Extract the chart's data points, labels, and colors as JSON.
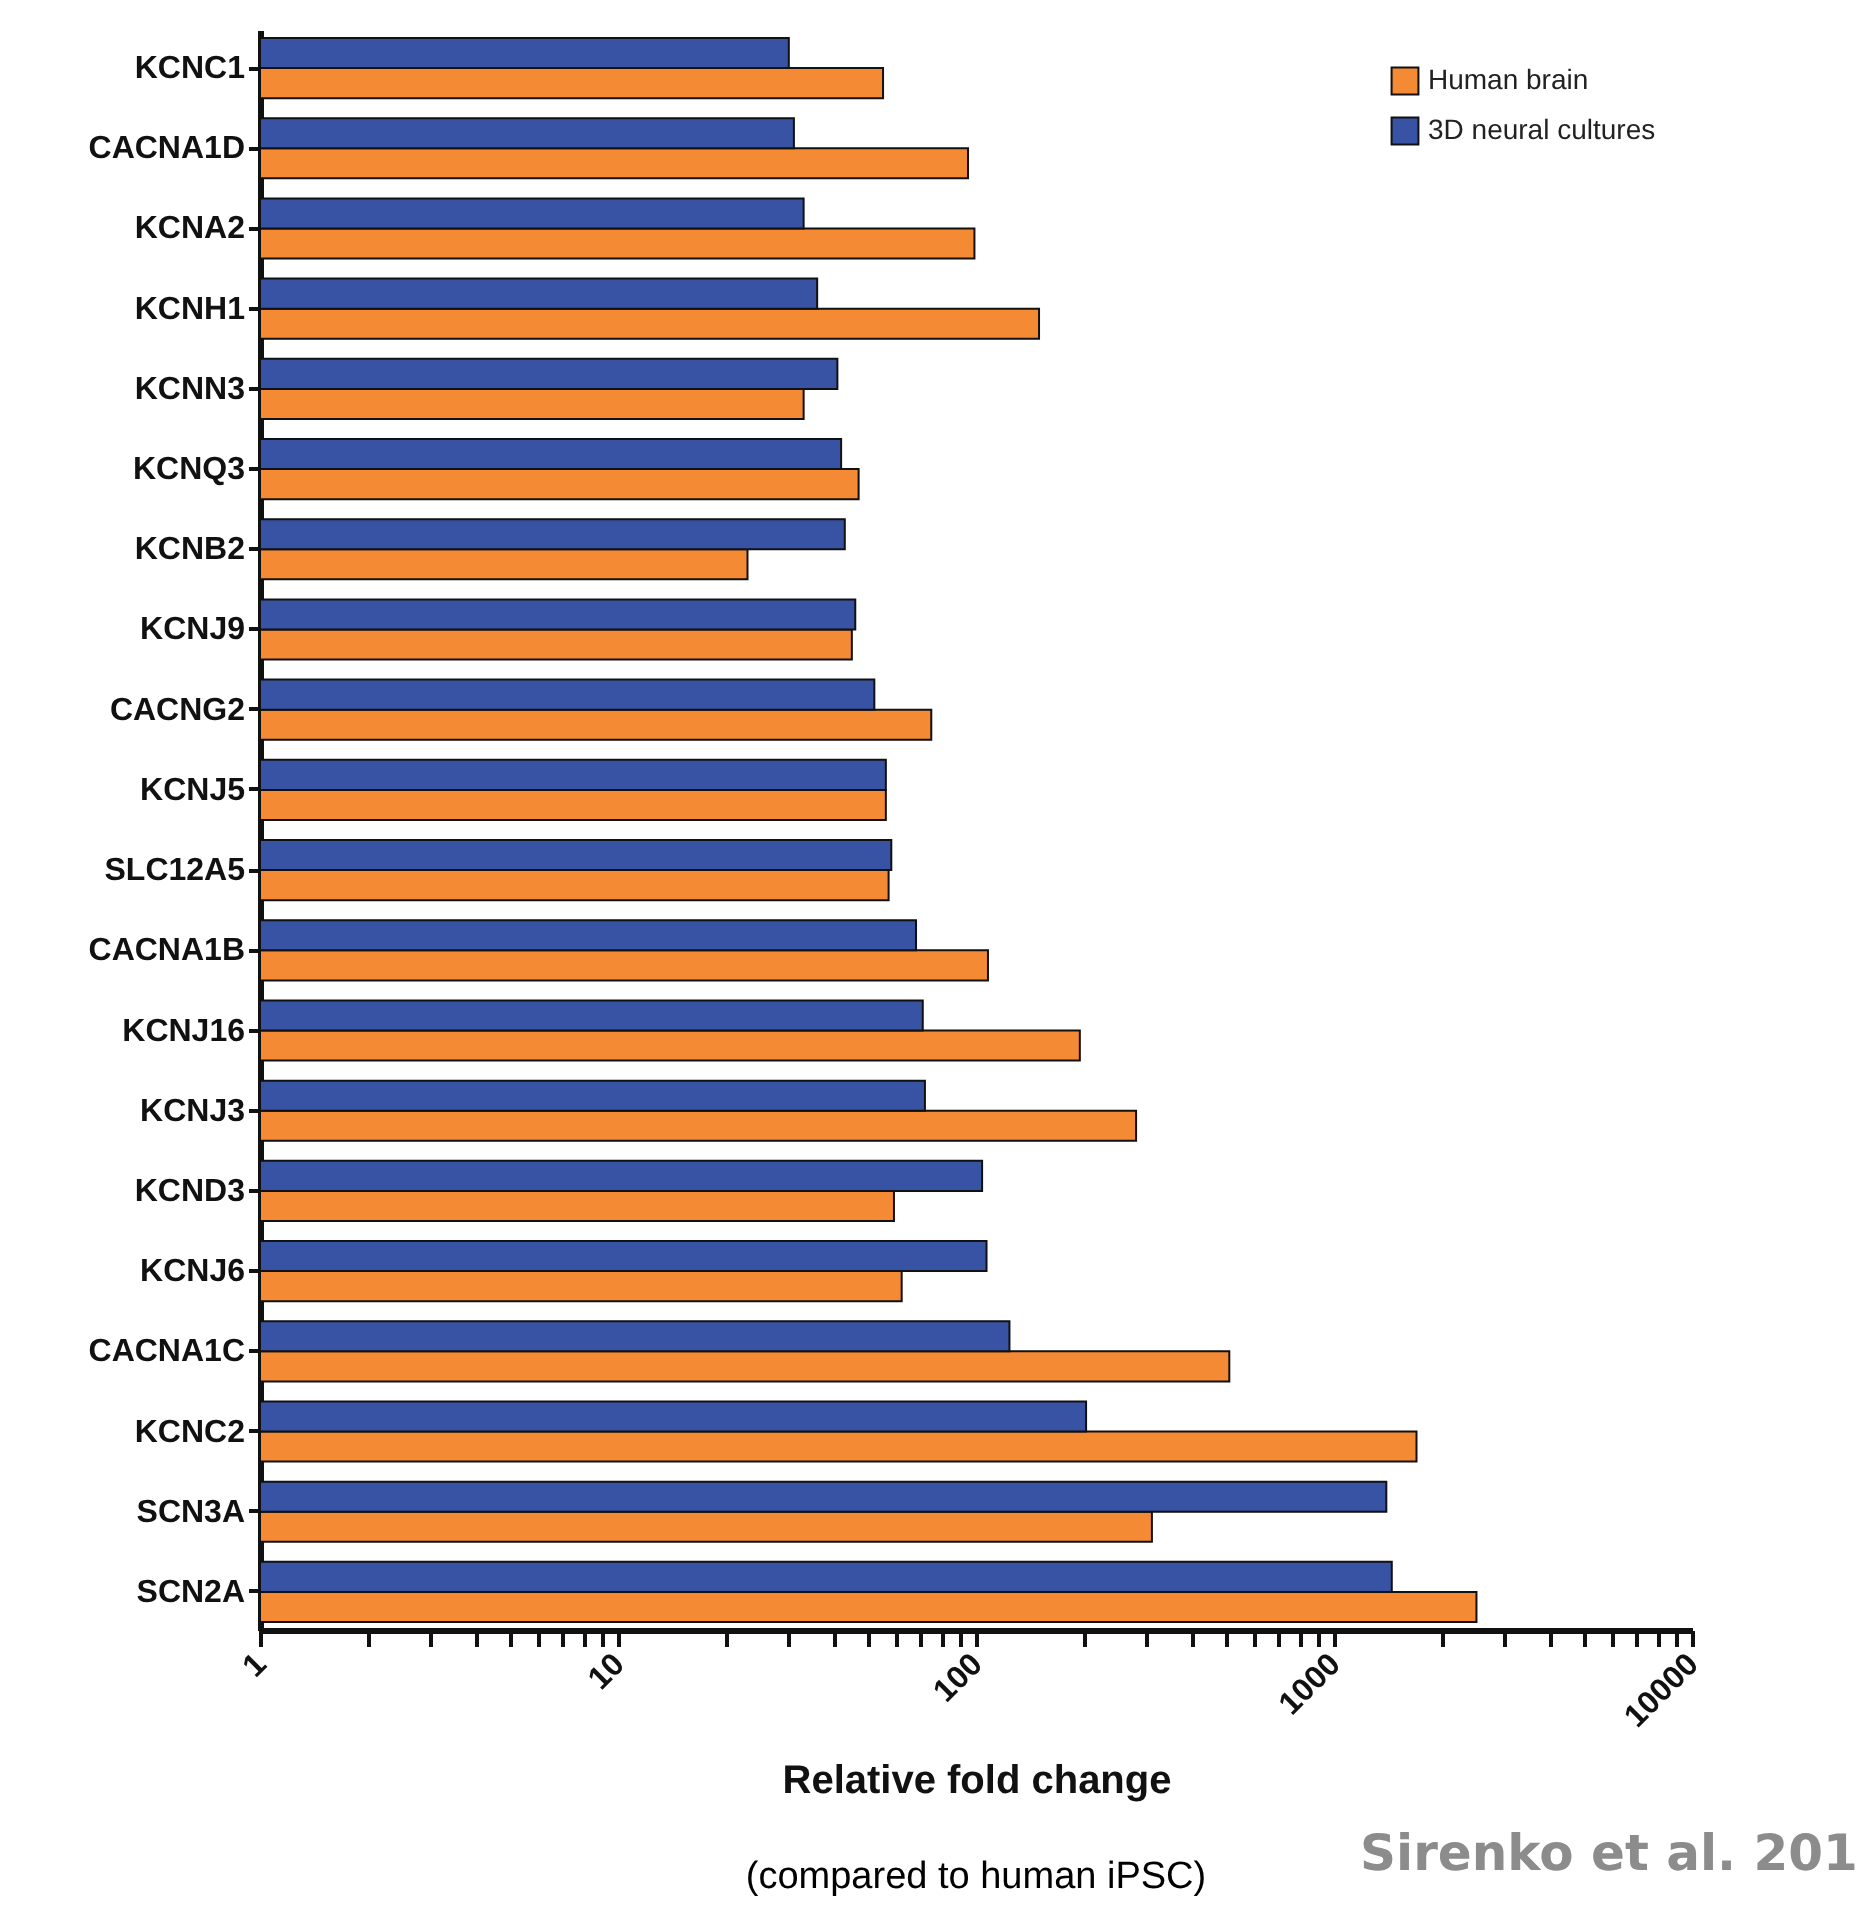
{
  "chart_data": {
    "type": "bar",
    "orientation": "horizontal",
    "xlabel": "Relative fold change",
    "annotations": [
      "(compared to human iPSC)",
      "Sirenko et al. 201"
    ],
    "categories": [
      "KCNC1",
      "CACNA1D",
      "KCNA2",
      "KCNH1",
      "KCNN3",
      "KCNQ3",
      "KCNB2",
      "KCNJ9",
      "CACNG2",
      "KCNJ5",
      "SLC12A5",
      "CACNA1B",
      "KCNJ16",
      "KCNJ3",
      "KCND3",
      "KCNJ6",
      "CACNA1C",
      "KCNC2",
      "SCN3A",
      "SCN2A"
    ],
    "series": [
      {
        "name": "Human brain",
        "color": "#f58a34",
        "values": [
          55,
          95,
          99,
          150,
          33,
          47,
          23,
          45,
          75,
          56,
          57,
          108,
          195,
          280,
          59,
          62,
          510,
          1700,
          310,
          2500
        ]
      },
      {
        "name": "3D neural cultures",
        "color": "#3953a4",
        "values": [
          30,
          31,
          33,
          36,
          41,
          42,
          43,
          46,
          52,
          56,
          58,
          68,
          71,
          72,
          104,
          107,
          124,
          203,
          1400,
          1450
        ]
      }
    ],
    "log": "x",
    "xlim": [
      1,
      10000
    ],
    "xticks": [
      1,
      {
        "value": 2,
        "label": null
      },
      {
        "value": 3,
        "label": null
      },
      {
        "value": 4,
        "label": null
      },
      {
        "value": 5,
        "label": null
      },
      {
        "value": 6,
        "label": null
      },
      {
        "value": 7,
        "label": null
      },
      {
        "value": 8,
        "label": null
      },
      {
        "value": 9,
        "label": null
      },
      10,
      {
        "value": 20,
        "label": null
      },
      {
        "value": 30,
        "label": null
      },
      {
        "value": 40,
        "label": null
      },
      {
        "value": 50,
        "label": null
      },
      {
        "value": 60,
        "label": null
      },
      {
        "value": 70,
        "label": null
      },
      {
        "value": 80,
        "label": null
      },
      {
        "value": 90,
        "label": null
      },
      100,
      {
        "value": 200,
        "label": null
      },
      {
        "value": 300,
        "label": null
      },
      {
        "value": 400,
        "label": null
      },
      {
        "value": 500,
        "label": null
      },
      {
        "value": 600,
        "label": null
      },
      {
        "value": 700,
        "label": null
      },
      {
        "value": 800,
        "label": null
      },
      {
        "value": 900,
        "label": null
      },
      1000,
      {
        "value": 2000,
        "label": null
      },
      {
        "value": 3000,
        "label": null
      },
      {
        "value": 4000,
        "label": null
      },
      {
        "value": 5000,
        "label": null
      },
      {
        "value": 6000,
        "label": null
      },
      {
        "value": 7000,
        "label": null
      },
      {
        "value": 8000,
        "label": null
      },
      {
        "value": 9000,
        "label": null
      },
      10000
    ],
    "grid": false,
    "legend": "top right"
  }
}
